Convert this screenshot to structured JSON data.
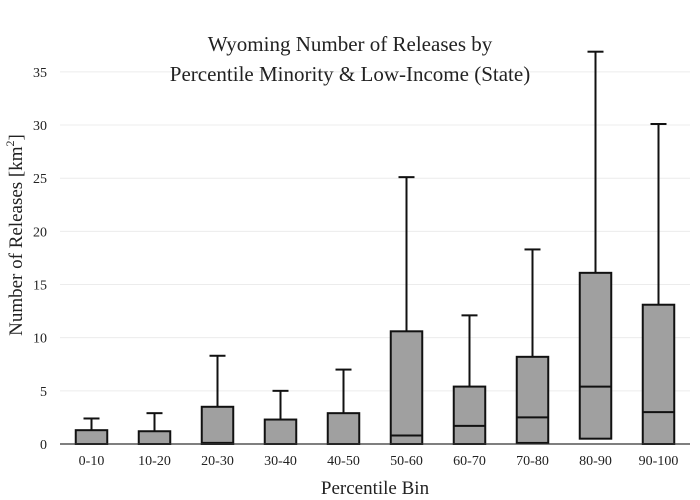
{
  "chart_data": {
    "type": "box",
    "title_lines": [
      "Wyoming Number of Releases by",
      "Percentile Minority & Low-Income (State)"
    ],
    "xlabel": "Percentile Bin",
    "ylabel_main": "Number of Releases  [km",
    "ylabel_sup": "2",
    "ylabel_end": "]",
    "ylim": [
      0,
      38
    ],
    "yticks": [
      0,
      5,
      10,
      15,
      20,
      25,
      30,
      35
    ],
    "grid": true,
    "categories": [
      "0-10",
      "10-20",
      "20-30",
      "30-40",
      "40-50",
      "50-60",
      "60-70",
      "70-80",
      "80-90",
      "90-100"
    ],
    "boxes": [
      {
        "category": "0-10",
        "min": 0,
        "q1": 0,
        "median": 0,
        "q3": 1.3,
        "max": 2.4
      },
      {
        "category": "10-20",
        "min": 0,
        "q1": 0,
        "median": 0,
        "q3": 1.2,
        "max": 2.9
      },
      {
        "category": "20-30",
        "min": 0,
        "q1": 0,
        "median": 0.1,
        "q3": 3.5,
        "max": 8.3
      },
      {
        "category": "30-40",
        "min": 0,
        "q1": 0,
        "median": 0,
        "q3": 2.3,
        "max": 5.0
      },
      {
        "category": "40-50",
        "min": 0,
        "q1": 0,
        "median": 0,
        "q3": 2.9,
        "max": 7.0
      },
      {
        "category": "50-60",
        "min": 0,
        "q1": 0,
        "median": 0.8,
        "q3": 10.6,
        "max": 25.1
      },
      {
        "category": "60-70",
        "min": 0,
        "q1": 0,
        "median": 1.7,
        "q3": 5.4,
        "max": 12.1
      },
      {
        "category": "70-80",
        "min": 0,
        "q1": 0.1,
        "median": 2.5,
        "q3": 8.2,
        "max": 18.3
      },
      {
        "category": "80-90",
        "min": 0,
        "q1": 0.5,
        "median": 5.4,
        "q3": 16.1,
        "max": 36.9
      },
      {
        "category": "90-100",
        "min": 0,
        "q1": 0,
        "median": 3.0,
        "q3": 13.1,
        "max": 30.1
      }
    ]
  }
}
